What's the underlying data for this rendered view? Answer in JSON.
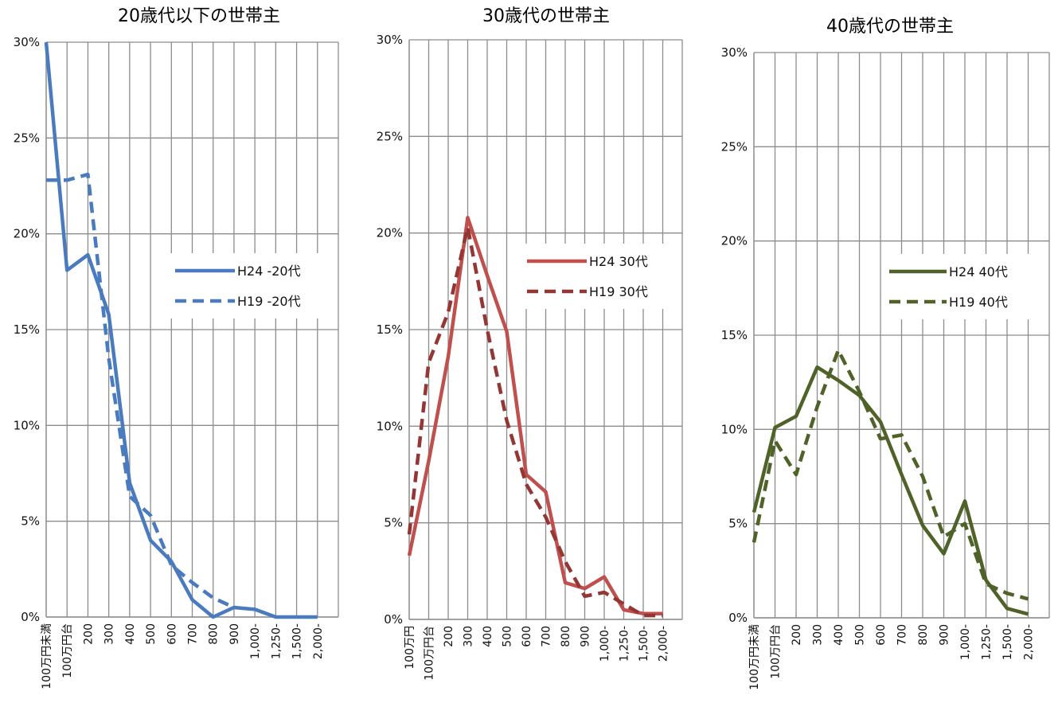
{
  "chart_data": [
    {
      "type": "line",
      "title": "20歳代以下の世帯主",
      "categories": [
        "100万円未満",
        "100万円台",
        "200",
        "300",
        "400",
        "500",
        "600",
        "700",
        "800",
        "900",
        "1,000-",
        "1,250-",
        "1,500-",
        "2,000-"
      ],
      "ylim": [
        0,
        30
      ],
      "yticks": [
        "0%",
        "5%",
        "10%",
        "15%",
        "20%",
        "25%",
        "30%"
      ],
      "grid": true,
      "legend": "right",
      "series": [
        {
          "name": "H24 -20代",
          "style": "solid",
          "color": "#4a7bbf",
          "values": [
            30.0,
            18.1,
            18.9,
            15.8,
            7.0,
            4.0,
            2.9,
            0.9,
            0.0,
            0.5,
            0.4,
            0.0,
            0.0,
            0.0
          ]
        },
        {
          "name": "H19 -20代",
          "style": "dashed",
          "color": "#4a7bbf",
          "values": [
            22.8,
            22.8,
            23.1,
            13.5,
            6.3,
            5.3,
            2.7,
            1.8,
            1.0,
            0.5,
            null,
            null,
            null,
            null
          ]
        }
      ]
    },
    {
      "type": "line",
      "title": "30歳代の世帯主",
      "categories": [
        "100万円",
        "100万円台",
        "200",
        "300",
        "400",
        "500",
        "600",
        "700",
        "800",
        "900",
        "1,000-",
        "1,250-",
        "1,500-",
        "2,000-"
      ],
      "ylim": [
        0,
        30
      ],
      "yticks": [
        "0%",
        "5%",
        "10%",
        "15%",
        "20%",
        "25%",
        "30%"
      ],
      "grid": true,
      "legend": "right",
      "series": [
        {
          "name": "H24 30代",
          "style": "solid",
          "color": "#c0504d",
          "values": [
            3.3,
            8.2,
            13.6,
            20.8,
            17.8,
            14.9,
            7.5,
            6.6,
            1.9,
            1.6,
            2.2,
            0.5,
            0.3,
            0.3
          ]
        },
        {
          "name": "H19 30代",
          "style": "dashed",
          "color": "#943634",
          "values": [
            4.4,
            13.3,
            15.9,
            20.3,
            15.0,
            10.3,
            7.0,
            5.3,
            3.0,
            1.2,
            1.4,
            0.8,
            0.2,
            0.2
          ]
        }
      ]
    },
    {
      "type": "line",
      "title": "40歳代の世帯主",
      "categories": [
        "100万円未満",
        "100万円台",
        "200",
        "300",
        "400",
        "500",
        "600",
        "700",
        "800",
        "900",
        "1,000-",
        "1,250-",
        "1,500-",
        "2,000-"
      ],
      "ylim": [
        0,
        30
      ],
      "yticks": [
        "0%",
        "5%",
        "10%",
        "15%",
        "20%",
        "25%",
        "30%"
      ],
      "grid": true,
      "legend": "right",
      "series": [
        {
          "name": "H24 40代",
          "style": "solid",
          "color": "#4f6228",
          "values": [
            5.6,
            10.1,
            10.7,
            13.3,
            12.6,
            11.8,
            10.4,
            7.6,
            4.9,
            3.4,
            6.2,
            2.0,
            0.5,
            0.2
          ]
        },
        {
          "name": "H19 40代",
          "style": "dashed",
          "color": "#4f6228",
          "values": [
            4.0,
            9.4,
            7.6,
            11.2,
            14.2,
            12.0,
            9.5,
            9.7,
            7.5,
            4.3,
            5.0,
            1.8,
            1.3,
            1.0
          ]
        }
      ]
    }
  ]
}
